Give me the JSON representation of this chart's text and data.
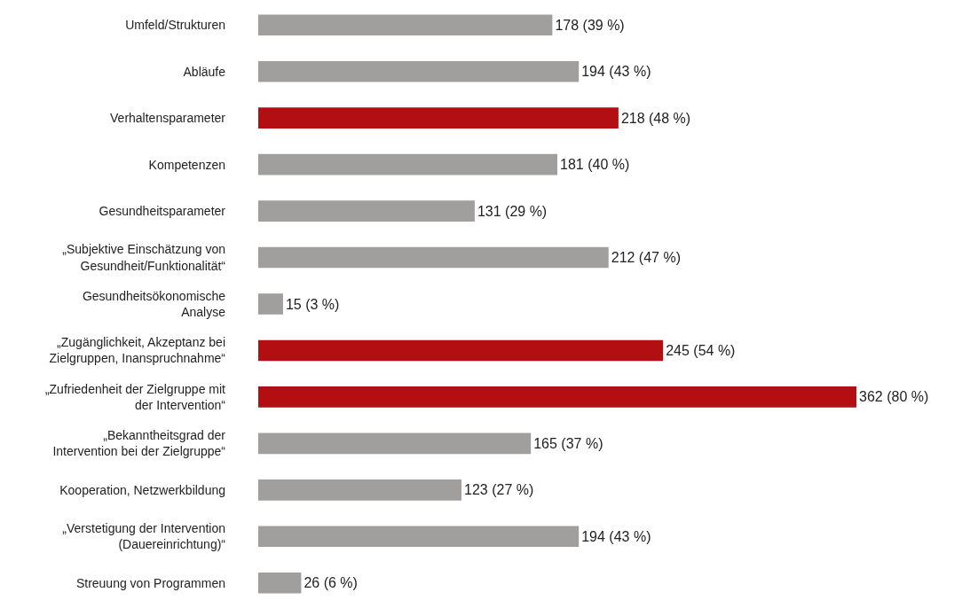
{
  "chart_data": {
    "type": "bar",
    "orientation": "horizontal",
    "categories": [
      "Umfeld/Strukturen",
      "Abläufe",
      "Verhaltensparameter",
      "Kompetenzen",
      "Gesundheitsparameter",
      "„Subjektive Einschätzung von\nGesundheit/Funktionalität“",
      "Gesundheitsökonomische\nAnalyse",
      "„Zugänglichkeit, Akzeptanz bei\nZielgruppen, Inanspruchnahme“",
      "„Zufriedenheit der Zielgruppe mit\nder Intervention“",
      "„Bekanntheitsgrad der\nIntervention bei der Zielgruppe“",
      "Kooperation, Netzwerkbildung",
      "„Verstetigung der Intervention\n(Dauereinrichtung)“",
      "Streuung von Programmen"
    ],
    "values": [
      178,
      194,
      218,
      181,
      131,
      212,
      15,
      245,
      362,
      165,
      123,
      194,
      26
    ],
    "value_labels": [
      "178 (39 %)",
      "194 (43 %)",
      "218 (48 %)",
      "181 (40 %)",
      "131 (29 %)",
      "212 (47 %)",
      "15 (3 %)",
      "245 (54 %)",
      "362 (80 %)",
      "165 (37 %)",
      "123 (27 %)",
      "194 (43 %)",
      "26 (6 %)"
    ],
    "colors": [
      "#a09f9e",
      "#a09f9e",
      "#b30f12",
      "#a09f9e",
      "#a09f9e",
      "#a09f9e",
      "#a09f9e",
      "#b30f12",
      "#b30f12",
      "#a09f9e",
      "#a09f9e",
      "#a09f9e",
      "#a09f9e"
    ]
  }
}
